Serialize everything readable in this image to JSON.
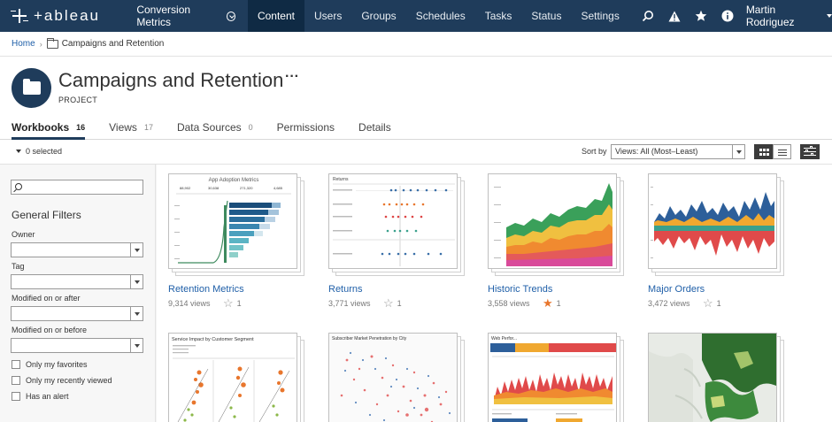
{
  "topnav": {
    "brand": "+ableau",
    "site": "Conversion Metrics",
    "items": [
      "Content",
      "Users",
      "Groups",
      "Schedules",
      "Tasks",
      "Status",
      "Settings"
    ],
    "active": "Content",
    "user": "Martin Rodriguez"
  },
  "breadcrumb": {
    "home": "Home",
    "current": "Campaigns and Retention"
  },
  "project": {
    "title": "Campaigns and Retention",
    "more": "···",
    "type": "PROJECT"
  },
  "tabs": [
    {
      "label": "Workbooks",
      "count": "16"
    },
    {
      "label": "Views",
      "count": "17"
    },
    {
      "label": "Data Sources",
      "count": "0"
    },
    {
      "label": "Permissions",
      "count": ""
    },
    {
      "label": "Details",
      "count": ""
    }
  ],
  "toolbar": {
    "selected": "0 selected",
    "sort_label": "Sort by",
    "sort_value": "Views: All (Most–Least)"
  },
  "filters": {
    "title": "General Filters",
    "owner": "Owner",
    "tag": "Tag",
    "modified_after": "Modified on or after",
    "modified_before": "Modified on or before",
    "favorites": "Only my favorites",
    "recent": "Only my recently viewed",
    "alert": "Has an alert"
  },
  "workbooks": [
    {
      "name": "Retention Metrics",
      "views": "9,314 views",
      "favs": "1",
      "fav": false,
      "thumb_title": "App Adoption Metrics"
    },
    {
      "name": "Returns",
      "views": "3,771 views",
      "favs": "1",
      "fav": false,
      "thumb_title": "Returns"
    },
    {
      "name": "Historic Trends",
      "views": "3,558 views",
      "favs": "1",
      "fav": true,
      "thumb_title": ""
    },
    {
      "name": "Major Orders",
      "views": "3,472 views",
      "favs": "1",
      "fav": false,
      "thumb_title": ""
    },
    {
      "name": "",
      "views": "",
      "favs": "",
      "fav": false,
      "thumb_title": "Service Impact by Customer Segment"
    },
    {
      "name": "",
      "views": "",
      "favs": "",
      "fav": false,
      "thumb_title": "Subscriber Market Penetration by City"
    },
    {
      "name": "",
      "views": "",
      "favs": "",
      "fav": false,
      "thumb_title": "Web Perfor..."
    },
    {
      "name": "",
      "views": "",
      "favs": "",
      "fav": false,
      "thumb_title": ""
    }
  ],
  "colors": {
    "nav": "#1f3c5b",
    "nav_active": "#0f2a44",
    "link": "#1f5fa8",
    "star_on": "#e8762d"
  }
}
